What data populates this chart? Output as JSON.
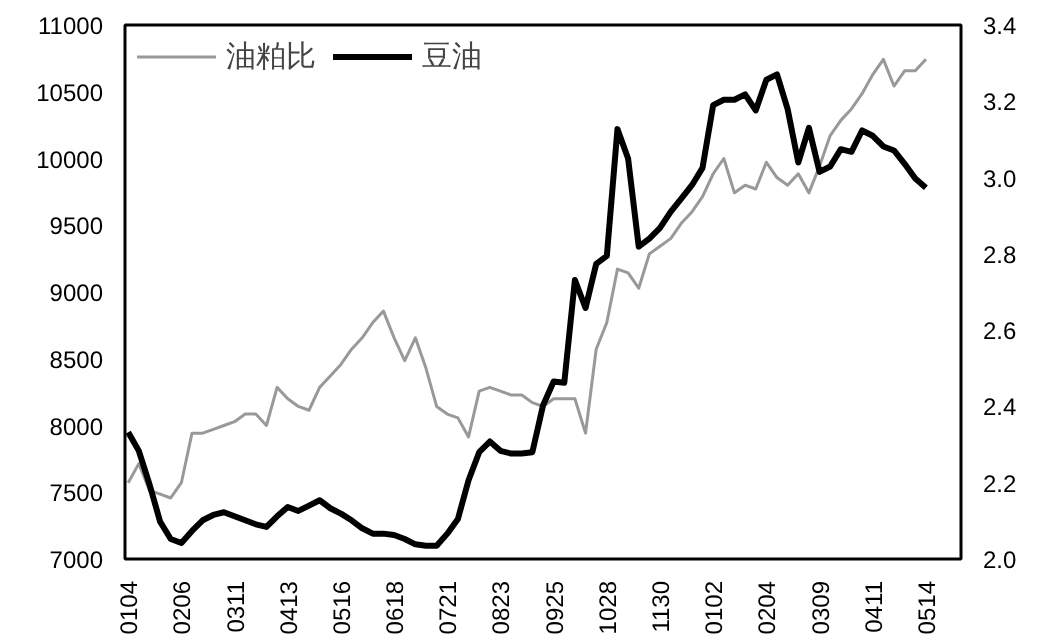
{
  "chart_data": {
    "type": "line",
    "categories": [
      "0104",
      null,
      null,
      null,
      null,
      "0206",
      null,
      null,
      null,
      null,
      "0311",
      null,
      null,
      null,
      null,
      "0413",
      null,
      null,
      null,
      null,
      "0516",
      null,
      null,
      null,
      null,
      "0618",
      null,
      null,
      null,
      null,
      "0721",
      null,
      null,
      null,
      null,
      "0823",
      null,
      null,
      null,
      null,
      "0925",
      null,
      null,
      null,
      null,
      "1028",
      null,
      null,
      null,
      null,
      "1130",
      null,
      null,
      null,
      null,
      "0102",
      null,
      null,
      null,
      null,
      "0204",
      null,
      null,
      null,
      null,
      "0309",
      null,
      null,
      null,
      null,
      "0411",
      null,
      null,
      null,
      null,
      "0514",
      null,
      null,
      null
    ],
    "ylim": [
      7000,
      11000
    ],
    "yticks": [
      7000,
      7500,
      8000,
      8500,
      9000,
      9500,
      10000,
      10500,
      11000
    ],
    "y2lim": [
      2.0,
      3.4
    ],
    "y2ticks": [
      {
        "value": 2.0,
        "label": "2.0"
      },
      {
        "value": 2.2,
        "label": "2.2"
      },
      {
        "value": 2.4,
        "label": "2.4"
      },
      {
        "value": 2.6,
        "label": "2.6"
      },
      {
        "value": 2.8,
        "label": "2.8"
      },
      {
        "value": 3.0,
        "label": "3.0"
      },
      {
        "value": 3.2,
        "label": "3.2"
      },
      {
        "value": 3.4,
        "label": "3.4"
      }
    ],
    "grid": false,
    "legend": "top left",
    "marker": "none",
    "line_style": "solid",
    "series": [
      {
        "name": "油粕比",
        "color": "#999999",
        "axis": "y2",
        "values": [
          2.2,
          2.25,
          2.18,
          2.17,
          2.16,
          2.2,
          2.33,
          2.33,
          2.34,
          2.35,
          2.36,
          2.38,
          2.38,
          2.35,
          2.45,
          2.42,
          2.4,
          2.39,
          2.45,
          2.48,
          2.51,
          2.55,
          2.58,
          2.62,
          2.65,
          2.58,
          2.52,
          2.58,
          2.5,
          2.4,
          2.38,
          2.37,
          2.32,
          2.44,
          2.45,
          2.44,
          2.43,
          2.43,
          2.41,
          2.4,
          2.42,
          2.42,
          2.42,
          2.33,
          2.55,
          2.62,
          2.76,
          2.75,
          2.71,
          2.8,
          2.82,
          2.84,
          2.88,
          2.91,
          2.95,
          3.01,
          3.05,
          2.96,
          2.98,
          2.97,
          3.04,
          3.0,
          2.98,
          3.01,
          2.96,
          3.03,
          3.11,
          3.15,
          3.18,
          3.22,
          3.27,
          3.31,
          3.24,
          3.28,
          3.28,
          3.31,
          null,
          null,
          null
        ]
      },
      {
        "name": "豆油",
        "color": "#000000",
        "values": [
          7950,
          7810,
          7560,
          7280,
          7150,
          7120,
          7210,
          7290,
          7330,
          7350,
          7320,
          7290,
          7260,
          7240,
          7320,
          7390,
          7360,
          7400,
          7440,
          7380,
          7340,
          7290,
          7230,
          7190,
          7190,
          7180,
          7150,
          7110,
          7100,
          7100,
          7190,
          7300,
          7590,
          7800,
          7880,
          7810,
          7790,
          7790,
          7800,
          8150,
          8330,
          8320,
          9090,
          8880,
          9210,
          9270,
          10220,
          10000,
          9340,
          9400,
          9480,
          9600,
          9700,
          9800,
          9930,
          10400,
          10440,
          10440,
          10480,
          10360,
          10590,
          10630,
          10370,
          9970,
          10230,
          9900,
          9940,
          10070,
          10050,
          10210,
          10170,
          10090,
          10060,
          9960,
          9850,
          9780,
          null,
          null,
          null
        ]
      }
    ]
  }
}
